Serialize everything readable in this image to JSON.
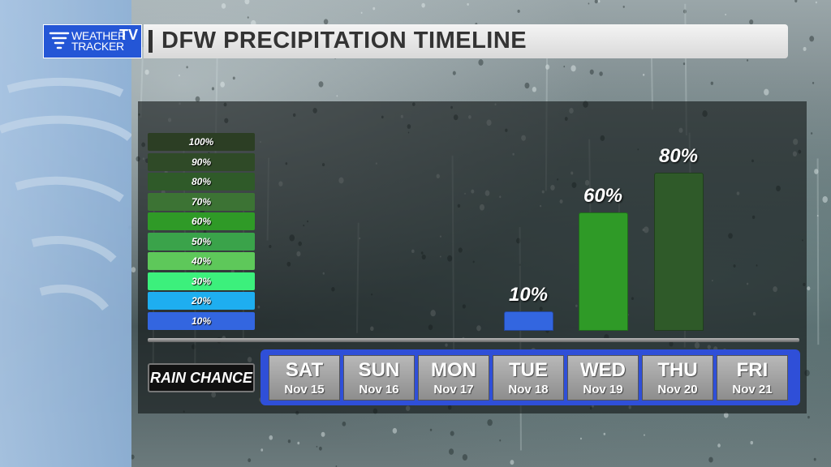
{
  "logo": {
    "line1": "WEATHER",
    "line2": "TRACKER",
    "tv": "TV"
  },
  "header": {
    "title": "DFW PRECIPITATION TIMELINE"
  },
  "legend": [
    {
      "label": "100%",
      "color": "#2c3e24"
    },
    {
      "label": "90%",
      "color": "#2f4a27"
    },
    {
      "label": "80%",
      "color": "#2f5a29"
    },
    {
      "label": "70%",
      "color": "#3c7334"
    },
    {
      "label": "60%",
      "color": "#2f9a27"
    },
    {
      "label": "50%",
      "color": "#3aa34a"
    },
    {
      "label": "40%",
      "color": "#5ec85a"
    },
    {
      "label": "30%",
      "color": "#3cf07c"
    },
    {
      "label": "20%",
      "color": "#1eaef0"
    },
    {
      "label": "10%",
      "color": "#3366e0"
    }
  ],
  "rain_chance_label": "RAIN CHANCE",
  "days": [
    {
      "name": "SAT",
      "date": "Nov 15"
    },
    {
      "name": "SUN",
      "date": "Nov 16"
    },
    {
      "name": "MON",
      "date": "Nov 17"
    },
    {
      "name": "TUE",
      "date": "Nov 18"
    },
    {
      "name": "WED",
      "date": "Nov 19"
    },
    {
      "name": "THU",
      "date": "Nov 20"
    },
    {
      "name": "FRI",
      "date": "Nov 21"
    }
  ],
  "chart_data": {
    "type": "bar",
    "title": "DFW PRECIPITATION TIMELINE",
    "categories": [
      "SAT Nov 15",
      "SUN Nov 16",
      "MON Nov 17",
      "TUE Nov 18",
      "WED Nov 19",
      "THU Nov 20",
      "FRI Nov 21"
    ],
    "values": [
      null,
      null,
      null,
      10,
      60,
      80,
      null
    ],
    "labels": [
      "",
      "",
      "",
      "10%",
      "60%",
      "80%",
      ""
    ],
    "colors": [
      "",
      "",
      "",
      "#3366e0",
      "#2f9a27",
      "#2f5a29",
      ""
    ],
    "ylim": [
      0,
      100
    ],
    "grid": false
  }
}
